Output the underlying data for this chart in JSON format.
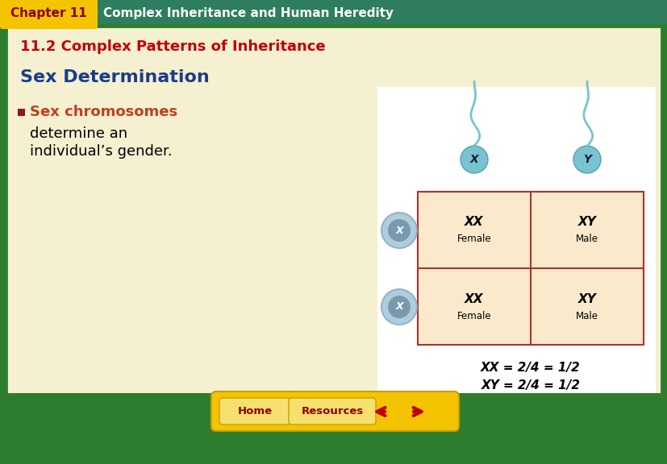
{
  "header_bg": "#2e7d5e",
  "header_text": "Complex Inheritance and Human Heredity",
  "chapter_label": "Chapter 11",
  "chapter_label_bg": "#f5c400",
  "chapter_label_color": "#8b0000",
  "header_text_color": "#ffffff",
  "section_title": "11.2 Complex Patterns of Inheritance",
  "section_title_color": "#c0000a",
  "main_bg": "#f5f0d0",
  "outer_border": "#2e7d2e",
  "topic_title": "Sex Determination",
  "topic_title_color": "#1a3c8c",
  "bullet_color": "#8b1a1a",
  "bullet_highlight_color": "#c04020",
  "bullet_text_highlight": "Sex chromosomes",
  "bullet_text_normal_1": "determine an",
  "bullet_text_normal_2": "individual’s gender.",
  "footer_bg": "#f5c400",
  "home_btn": "Home",
  "home_btn_bg": "#f5e070",
  "home_btn_color": "#8b0000",
  "resources_btn": "Resources",
  "resources_btn_bg": "#f5e070",
  "resources_btn_color": "#8b0000",
  "arrow_color": "#c00000",
  "grid_bg": "#faeacb",
  "grid_line_color": "#b03030",
  "cell_texts": [
    [
      "XX",
      "XY"
    ],
    [
      "XX",
      "XY"
    ]
  ],
  "cell_labels": [
    [
      "Female",
      "Male"
    ],
    [
      "Female",
      "Male"
    ]
  ],
  "caption_line1": "XX = 2/4 = 1/2",
  "caption_line2": "XY = 2/4 = 1/2",
  "sperm_color": "#6bbdcc",
  "sperm_edge": "#4a9aaa",
  "egg_outer_color": "#a8c8d8",
  "egg_inner_color": "#7090a8",
  "egg_label_color": "#1a1a4a",
  "white_area_bg": "#ffffff"
}
